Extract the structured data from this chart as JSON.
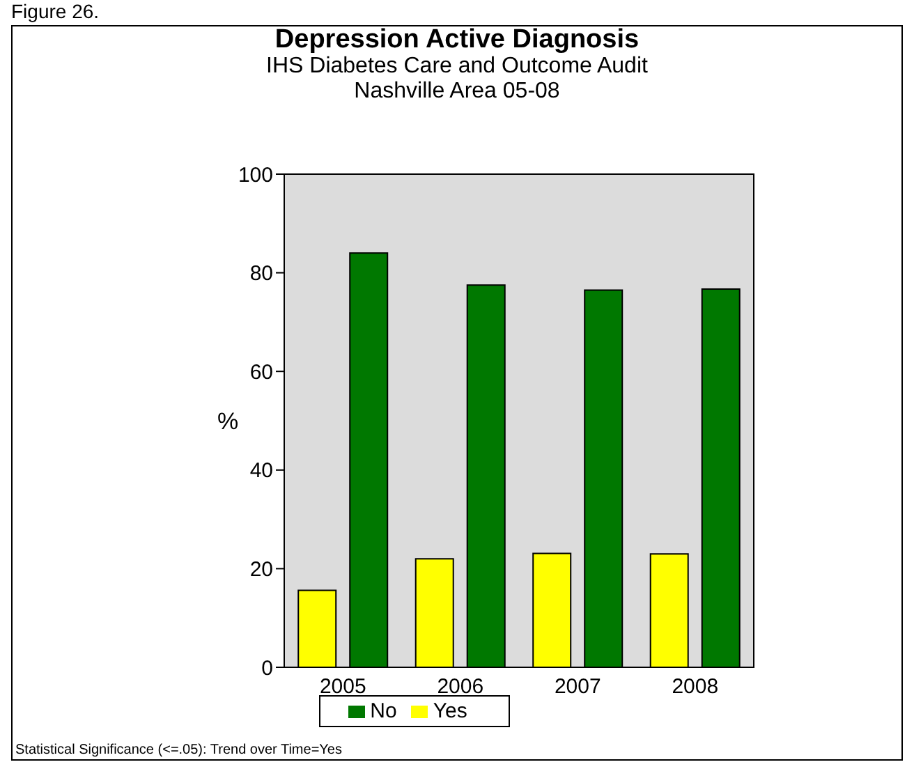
{
  "chart_data": {
    "type": "bar",
    "title": "Depression Active Diagnosis",
    "subtitle": "IHS Diabetes Care and Outcome Audit\nNashville Area 05-08",
    "ylabel": "%",
    "categories": [
      "2005",
      "2006",
      "2007",
      "2008"
    ],
    "series": [
      {
        "name": "Yes",
        "color": "#ffff00",
        "values": [
          15.6,
          22.0,
          23.1,
          23.0
        ]
      },
      {
        "name": "No",
        "color": "#007800",
        "values": [
          84.0,
          77.5,
          76.5,
          76.7
        ]
      }
    ],
    "ylim": [
      0,
      100
    ],
    "yticks": [
      0,
      20,
      40,
      60,
      80,
      100
    ],
    "legend": "bottom",
    "annotations": [
      "Figure 26.",
      "Statistical Significance (<=.05): Trend over Time=Yes"
    ]
  }
}
